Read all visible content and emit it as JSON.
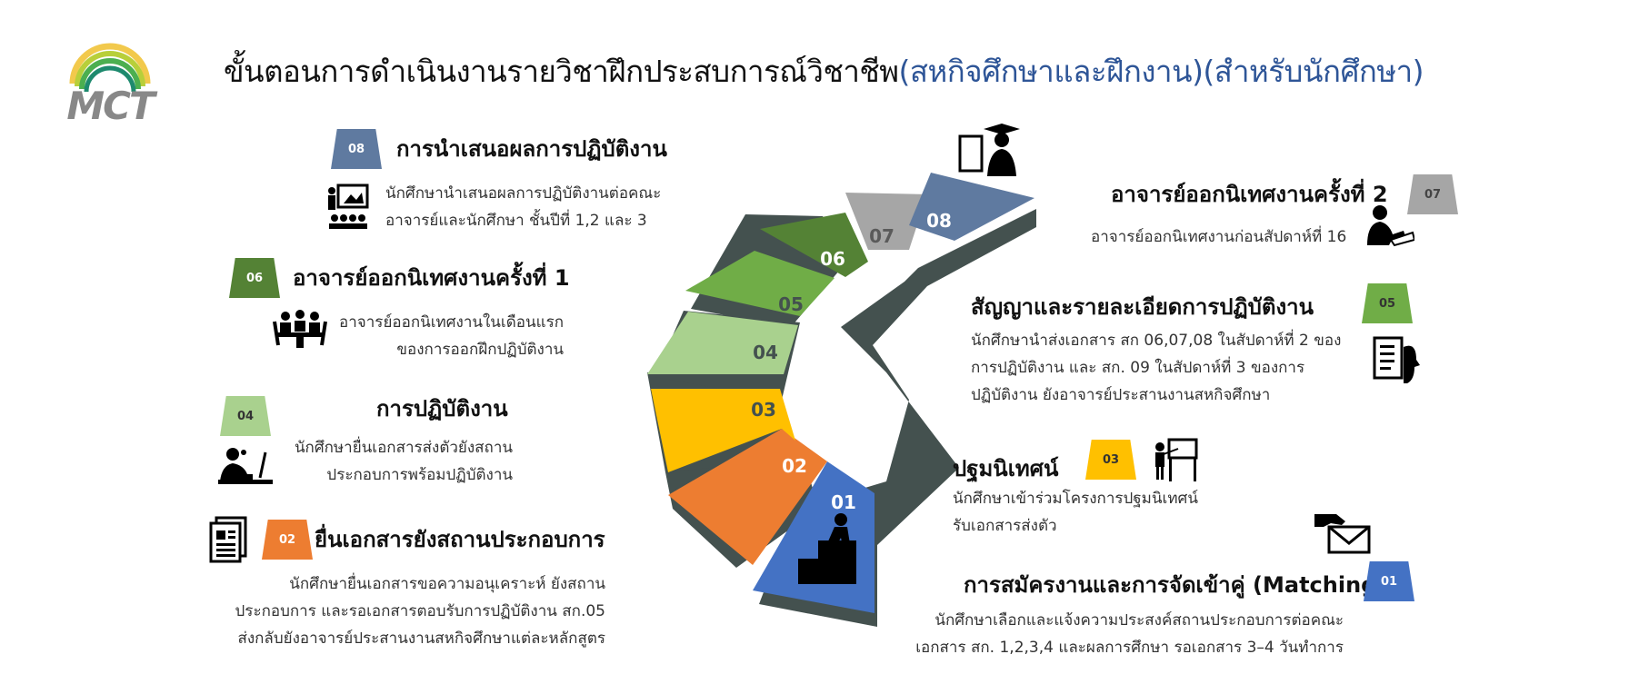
{
  "logo": {
    "text": "MCT"
  },
  "title": {
    "main": "ขั้นตอนการดำเนินงานรายวิชาฝึกประสบการณ์วิชาชีพ",
    "highlight": "(สหกิจศึกษาและฝึกงาน)(สำหรับนักศึกษา)"
  },
  "colors": {
    "s01": "#4472c4",
    "s02": "#ed7d31",
    "s03": "#ffc000",
    "s04": "#a9d18e",
    "s05": "#70ad47",
    "s06": "#548235",
    "s07": "#a6a6a6",
    "s08": "#5f7aa0",
    "side": "#44514f",
    "title_highlight": "#2e5597"
  },
  "stairs": {
    "labels": [
      "01",
      "02",
      "03",
      "04",
      "05",
      "06",
      "07",
      "08"
    ]
  },
  "steps": [
    {
      "num": "01",
      "title": "การสมัครงานและการจัดเข้าคู่ (Matching)",
      "desc": [
        "นักศึกษาเลือกและแจ้งความประสงค์สถานประกอบการต่อคณะ",
        "เอกสาร สก. 1,2,3,4 และผลการศึกษา รอเอกสาร 3–4 วันทำการ"
      ],
      "icon": "hand-envelope-icon"
    },
    {
      "num": "02",
      "title": "ยื่นเอกสารยังสถานประกอบการ",
      "desc": [
        "นักศึกษายื่นเอกสารขอความอนุเคราะห์ ยังสถาน",
        "ประกอบการ และรอเอกสารตอบรับการปฏิบัติงาน สก.05",
        "ส่งกลับยังอาจารย์ประสานงานสหกิจศึกษาแต่ละหลักสูตร"
      ],
      "icon": "documents-icon"
    },
    {
      "num": "03",
      "title": "ปฐมนิเทศน์",
      "desc": [
        "นักศึกษาเข้าร่วมโครงการปฐมนิเทศน์",
        "รับเอกสารส่งตัว"
      ],
      "icon": "presenter-board-icon"
    },
    {
      "num": "04",
      "title": "การปฏิบัติงาน",
      "desc": [
        "นักศึกษายื่นเอกสารส่งตัวยังสถาน",
        "ประกอบการพร้อมปฏิบัติงาน"
      ],
      "icon": "worker-desk-icon"
    },
    {
      "num": "05",
      "title": "สัญญาและรายละเอียดการปฏิบัติงาน",
      "desc": [
        "นักศึกษานำส่งเอกสาร สก 06,07,08 ในสัปดาห์ที่ 2 ของ",
        "การปฏิบัติงาน และ สก. 09 ในสัปดาห์ที่ 3 ของการ",
        "ปฏิบัติงาน ยังอาจารย์ประสานงานสหกิจศึกษา"
      ],
      "icon": "contract-icon"
    },
    {
      "num": "06",
      "title": "อาจารย์ออกนิเทศงานครั้งที่ 1",
      "desc": [
        "อาจารย์ออกนิเทศงานในเดือนแรก",
        "ของการออกฝึกปฏิบัติงาน"
      ],
      "icon": "meeting-icon"
    },
    {
      "num": "07",
      "title": "อาจารย์ออกนิเทศงานครั้งที่ 2",
      "desc": [
        "อาจารย์ออกนิเทศงานก่อนสัปดาห์ที่ 16"
      ],
      "icon": "writing-person-icon"
    },
    {
      "num": "08",
      "title": "การนำเสนอผลการปฏิบัติงาน",
      "desc": [
        "นักศึกษานำเสนอผลการปฏิบัติงานต่อคณะ",
        "อาจารย์และนักศึกษา ชั้นปีที่ 1,2 และ 3"
      ],
      "icon": "presentation-audience-icon"
    }
  ]
}
